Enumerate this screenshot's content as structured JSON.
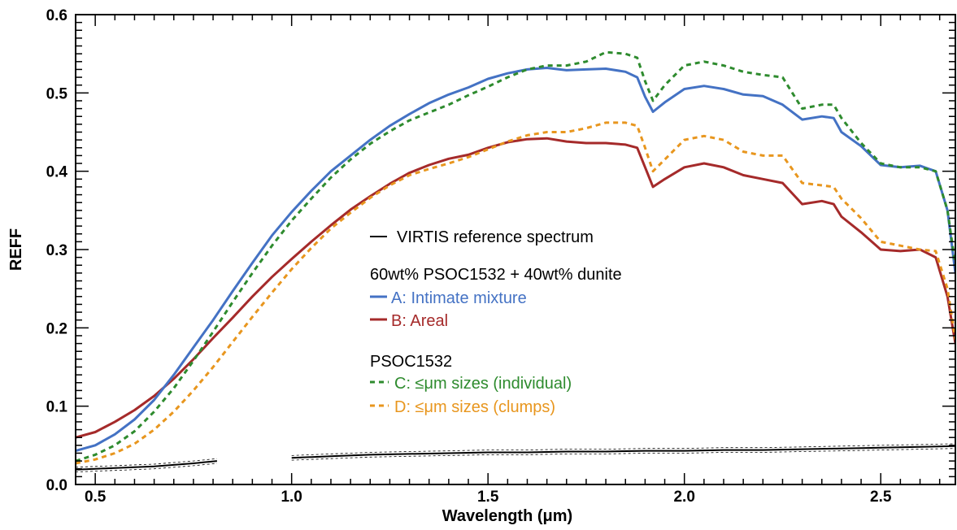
{
  "chart_data": {
    "type": "line",
    "xlabel": "Wavelength (μm)",
    "ylabel": "REFF",
    "xlim": [
      0.45,
      2.69
    ],
    "ylim": [
      0.0,
      0.6
    ],
    "x_ticks": [
      "0.5",
      "1.0",
      "1.5",
      "2.0",
      "2.5"
    ],
    "x_tick_values": [
      0.5,
      1.0,
      1.5,
      2.0,
      2.5
    ],
    "y_ticks": [
      "0.0",
      "0.1",
      "0.2",
      "0.3",
      "0.4",
      "0.5",
      "0.6"
    ],
    "y_tick_values": [
      0.0,
      0.1,
      0.2,
      0.3,
      0.4,
      0.5,
      0.6
    ],
    "grid": false,
    "legend_position": "center",
    "legend": {
      "reference_label": "VIRTIS reference spectrum",
      "group1_heading": "60wt% PSOC1532 + 40wt% dunite",
      "group2_heading": "PSOC1532"
    },
    "series": [
      {
        "name": "A: Intimate mixture",
        "color": "#4472c4",
        "dash": "solid",
        "x": [
          0.45,
          0.5,
          0.55,
          0.6,
          0.65,
          0.7,
          0.75,
          0.8,
          0.85,
          0.9,
          0.95,
          1.0,
          1.05,
          1.1,
          1.15,
          1.2,
          1.25,
          1.3,
          1.35,
          1.4,
          1.45,
          1.5,
          1.55,
          1.6,
          1.65,
          1.7,
          1.75,
          1.8,
          1.85,
          1.88,
          1.9,
          1.92,
          1.95,
          2.0,
          2.05,
          2.1,
          2.15,
          2.2,
          2.25,
          2.3,
          2.35,
          2.38,
          2.4,
          2.45,
          2.5,
          2.55,
          2.6,
          2.64,
          2.67,
          2.69
        ],
        "y": [
          0.043,
          0.05,
          0.064,
          0.083,
          0.108,
          0.14,
          0.175,
          0.21,
          0.247,
          0.283,
          0.318,
          0.348,
          0.375,
          0.4,
          0.42,
          0.44,
          0.458,
          0.473,
          0.487,
          0.498,
          0.507,
          0.518,
          0.525,
          0.53,
          0.532,
          0.529,
          0.53,
          0.531,
          0.527,
          0.52,
          0.495,
          0.476,
          0.488,
          0.505,
          0.509,
          0.505,
          0.498,
          0.496,
          0.485,
          0.466,
          0.47,
          0.468,
          0.45,
          0.432,
          0.408,
          0.405,
          0.407,
          0.4,
          0.35,
          0.27
        ]
      },
      {
        "name": "B: Areal",
        "color": "#a52a2a",
        "dash": "solid",
        "x": [
          0.45,
          0.5,
          0.55,
          0.6,
          0.65,
          0.7,
          0.75,
          0.8,
          0.85,
          0.9,
          0.95,
          1.0,
          1.05,
          1.1,
          1.15,
          1.2,
          1.25,
          1.3,
          1.35,
          1.4,
          1.45,
          1.5,
          1.55,
          1.6,
          1.65,
          1.7,
          1.75,
          1.8,
          1.85,
          1.88,
          1.9,
          1.92,
          1.95,
          2.0,
          2.05,
          2.1,
          2.15,
          2.2,
          2.25,
          2.3,
          2.35,
          2.38,
          2.4,
          2.45,
          2.5,
          2.55,
          2.6,
          2.64,
          2.67,
          2.69
        ],
        "y": [
          0.06,
          0.067,
          0.08,
          0.095,
          0.113,
          0.135,
          0.16,
          0.187,
          0.213,
          0.24,
          0.265,
          0.288,
          0.31,
          0.331,
          0.351,
          0.368,
          0.384,
          0.398,
          0.408,
          0.416,
          0.421,
          0.43,
          0.437,
          0.441,
          0.442,
          0.438,
          0.436,
          0.436,
          0.434,
          0.43,
          0.405,
          0.38,
          0.39,
          0.405,
          0.41,
          0.405,
          0.395,
          0.39,
          0.385,
          0.358,
          0.362,
          0.358,
          0.342,
          0.322,
          0.3,
          0.298,
          0.3,
          0.29,
          0.24,
          0.18
        ]
      },
      {
        "name": "C: ≤μm sizes (individual)",
        "color": "#2e8b2e",
        "dash": "dashed",
        "x": [
          0.45,
          0.5,
          0.55,
          0.6,
          0.65,
          0.7,
          0.75,
          0.8,
          0.85,
          0.9,
          0.95,
          1.0,
          1.05,
          1.1,
          1.15,
          1.2,
          1.25,
          1.3,
          1.35,
          1.4,
          1.45,
          1.5,
          1.55,
          1.6,
          1.65,
          1.7,
          1.75,
          1.8,
          1.85,
          1.88,
          1.9,
          1.92,
          1.95,
          2.0,
          2.05,
          2.1,
          2.15,
          2.2,
          2.25,
          2.3,
          2.35,
          2.38,
          2.4,
          2.45,
          2.5,
          2.55,
          2.6,
          2.64,
          2.67,
          2.69
        ],
        "y": [
          0.03,
          0.038,
          0.05,
          0.068,
          0.093,
          0.123,
          0.158,
          0.195,
          0.233,
          0.27,
          0.305,
          0.337,
          0.365,
          0.392,
          0.415,
          0.435,
          0.451,
          0.465,
          0.475,
          0.485,
          0.497,
          0.508,
          0.52,
          0.53,
          0.535,
          0.535,
          0.54,
          0.552,
          0.55,
          0.545,
          0.515,
          0.49,
          0.51,
          0.535,
          0.54,
          0.535,
          0.527,
          0.523,
          0.52,
          0.48,
          0.485,
          0.485,
          0.468,
          0.436,
          0.41,
          0.405,
          0.405,
          0.4,
          0.35,
          0.28
        ]
      },
      {
        "name": "D: ≤μm sizes (clumps)",
        "color": "#e8961e",
        "dash": "dashed",
        "x": [
          0.45,
          0.5,
          0.55,
          0.6,
          0.65,
          0.7,
          0.75,
          0.8,
          0.85,
          0.9,
          0.95,
          1.0,
          1.05,
          1.1,
          1.15,
          1.2,
          1.25,
          1.3,
          1.35,
          1.4,
          1.45,
          1.5,
          1.55,
          1.6,
          1.65,
          1.7,
          1.75,
          1.8,
          1.85,
          1.88,
          1.9,
          1.92,
          1.95,
          2.0,
          2.05,
          2.1,
          2.15,
          2.2,
          2.25,
          2.3,
          2.35,
          2.38,
          2.4,
          2.45,
          2.5,
          2.55,
          2.6,
          2.64,
          2.67,
          2.69
        ],
        "y": [
          0.027,
          0.032,
          0.04,
          0.052,
          0.07,
          0.093,
          0.12,
          0.15,
          0.182,
          0.214,
          0.245,
          0.275,
          0.302,
          0.327,
          0.347,
          0.366,
          0.382,
          0.395,
          0.403,
          0.41,
          0.418,
          0.428,
          0.438,
          0.446,
          0.45,
          0.45,
          0.455,
          0.462,
          0.462,
          0.458,
          0.43,
          0.4,
          0.415,
          0.44,
          0.445,
          0.44,
          0.425,
          0.42,
          0.42,
          0.385,
          0.382,
          0.38,
          0.365,
          0.34,
          0.31,
          0.305,
          0.3,
          0.298,
          0.25,
          0.185
        ]
      },
      {
        "name": "VIRTIS reference spectrum",
        "color": "#000000",
        "dash": "solid",
        "x": [
          0.45,
          0.5,
          0.55,
          0.6,
          0.65,
          0.7,
          0.75,
          0.81
        ],
        "y": [
          0.019,
          0.02,
          0.021,
          0.022,
          0.023,
          0.025,
          0.027,
          0.03
        ]
      },
      {
        "name": "VIRTIS reference spectrum",
        "color": "#000000",
        "dash": "solid",
        "x": [
          1.0,
          1.1,
          1.2,
          1.3,
          1.4,
          1.5,
          1.6,
          1.7,
          1.8,
          1.9,
          2.0,
          2.1,
          2.2,
          2.3,
          2.4,
          2.5,
          2.6,
          2.69
        ],
        "y": [
          0.034,
          0.036,
          0.038,
          0.039,
          0.04,
          0.041,
          0.041,
          0.042,
          0.042,
          0.043,
          0.043,
          0.044,
          0.044,
          0.045,
          0.046,
          0.047,
          0.048,
          0.049
        ]
      }
    ]
  }
}
